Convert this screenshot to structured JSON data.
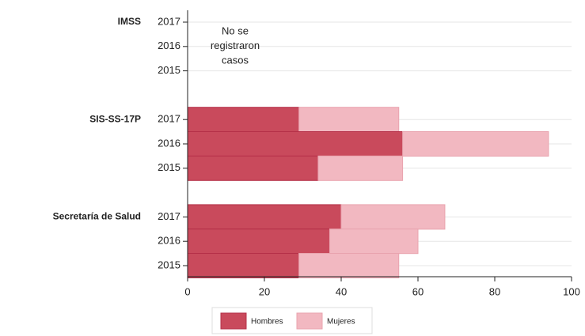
{
  "chart_data": {
    "type": "stacked-barh",
    "group_labels": [
      "IMSS",
      null,
      null,
      "SIS-SS-17P",
      null,
      null,
      "Secretaría de Salud",
      null,
      null
    ],
    "categories": [
      "2017",
      "2016",
      "2015",
      "2017",
      "2016",
      "2015",
      "2017",
      "2016",
      "2015"
    ],
    "series": [
      {
        "name": "Hombres",
        "color": "#c94a5c",
        "values": [
          null,
          null,
          null,
          29,
          56,
          34,
          40,
          37,
          29
        ]
      },
      {
        "name": "Mujeres",
        "color": "#f2b8c1",
        "values": [
          null,
          null,
          null,
          26,
          38,
          22,
          27,
          23,
          26
        ]
      }
    ],
    "annotation": [
      "No se",
      "registraron",
      "casos"
    ],
    "xlim": [
      0,
      100
    ],
    "xticks": [
      0,
      20,
      40,
      60,
      80,
      100
    ],
    "grid": true,
    "legend": "bottom"
  }
}
